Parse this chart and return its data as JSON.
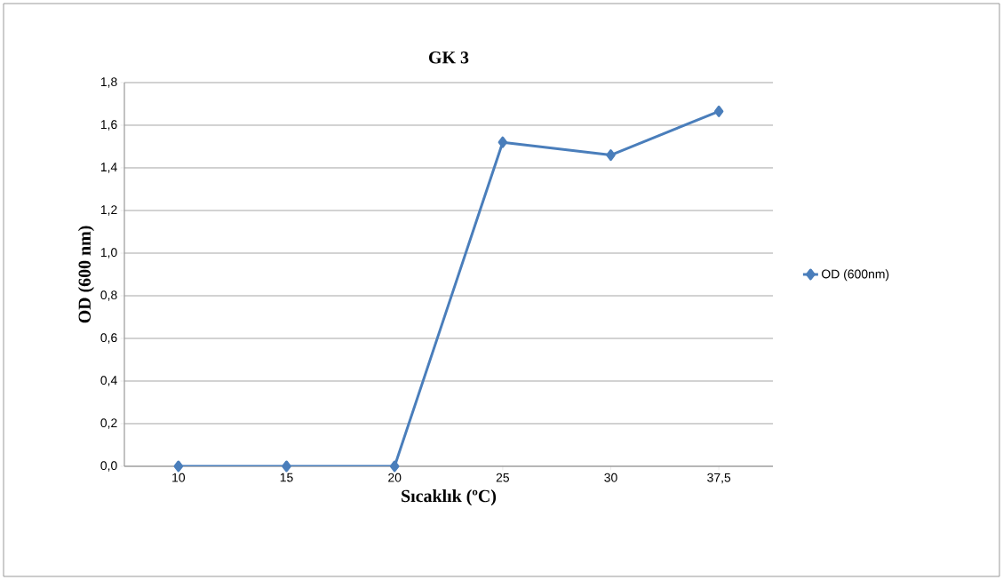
{
  "chart_data": {
    "type": "line",
    "title": "GK 3",
    "xlabel": "Sıcaklık (ºC)",
    "ylabel": "OD (600 nm)",
    "categories": [
      "10",
      "15",
      "20",
      "25",
      "30",
      "37,5"
    ],
    "series": [
      {
        "name": "OD (600nm)",
        "color": "#4a7ebb",
        "values": [
          0,
          0,
          0,
          1.52,
          1.46,
          1.665
        ]
      }
    ],
    "ylim": [
      0,
      1.8
    ],
    "yticks": [
      {
        "value": 0,
        "label": "0,0"
      },
      {
        "value": 0.2,
        "label": "0,2"
      },
      {
        "value": 0.4,
        "label": "0,4"
      },
      {
        "value": 0.6,
        "label": "0,6"
      },
      {
        "value": 0.8,
        "label": "0,8"
      },
      {
        "value": 1.0,
        "label": "1,0"
      },
      {
        "value": 1.2,
        "label": "1,2"
      },
      {
        "value": 1.4,
        "label": "1,4"
      },
      {
        "value": 1.6,
        "label": "1,6"
      },
      {
        "value": 1.8,
        "label": "1,8"
      }
    ],
    "grid": "y",
    "legend": "right",
    "marker": "diamond",
    "line_style": "solid"
  }
}
